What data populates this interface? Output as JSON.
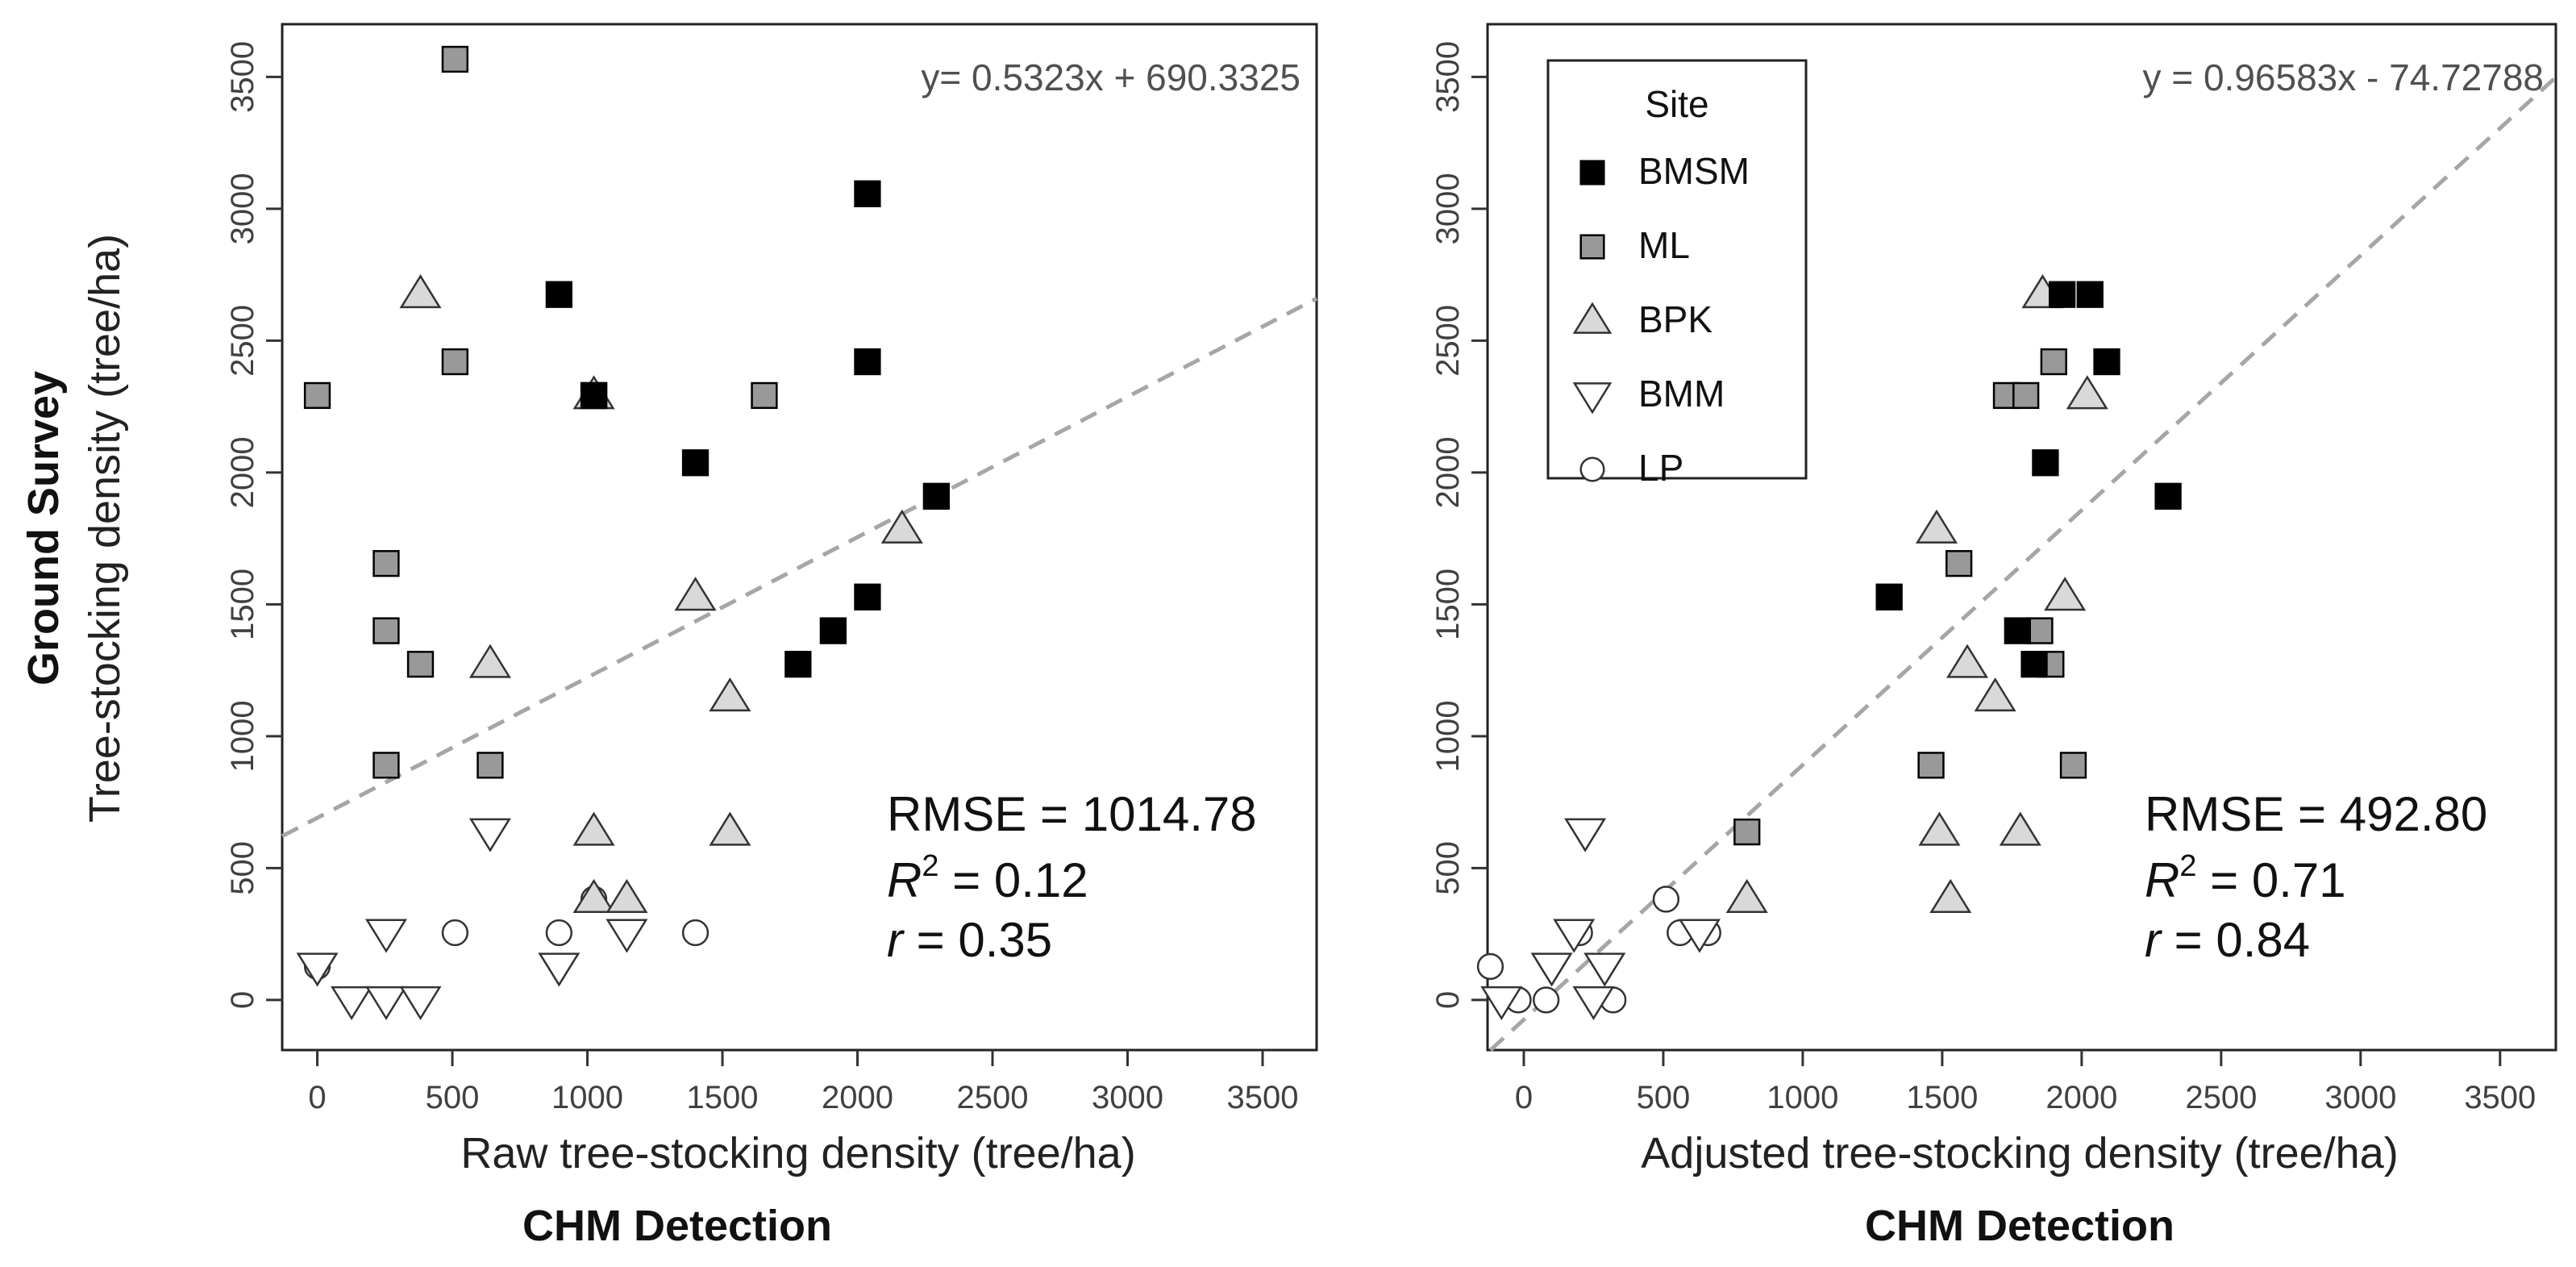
{
  "shared": {
    "ylabel_bold": "Ground Survey",
    "ylabel": "Tree-stocking density (tree/ha)",
    "xlabel_bold": "CHM Detection",
    "ticks": [
      "0",
      "500",
      "1000",
      "1500",
      "2000",
      "2500",
      "3000",
      "3500"
    ]
  },
  "legend": {
    "title": "Site",
    "items": [
      {
        "label": "BMSM",
        "shape": "square",
        "fill": "#000000"
      },
      {
        "label": "ML",
        "shape": "square",
        "fill": "#999999"
      },
      {
        "label": "BPK",
        "shape": "triangle-up",
        "fill": "#d9d9d9"
      },
      {
        "label": "BMM",
        "shape": "triangle-down",
        "fill": "#ffffff"
      },
      {
        "label": "LP",
        "shape": "circle",
        "fill": "#ffffff"
      }
    ]
  },
  "chart_data": [
    {
      "type": "scatter",
      "title": "",
      "xlabel": "Raw tree-stocking density (tree/ha)",
      "xlim": [
        -130,
        3700
      ],
      "ylim": [
        -190,
        3700
      ],
      "equation": "y= 0.5323x + 690.3325",
      "fit": {
        "slope": 0.5323,
        "intercept": 690.3325
      },
      "stats": {
        "rmse_label": "RMSE",
        "rmse": "1014.78",
        "r2_label": "R",
        "r2": "0.12",
        "r_label": "r",
        "r": "0.35"
      },
      "series": [
        {
          "name": "BMSM",
          "points": [
            [
              1024,
              2292
            ],
            [
              1024,
              2292
            ],
            [
              895,
              2675
            ],
            [
              2037,
              3057
            ],
            [
              2037,
              2420
            ],
            [
              1400,
              2037
            ],
            [
              2037,
              1528
            ],
            [
              1910,
              1400
            ],
            [
              1780,
              1273
            ],
            [
              2292,
              1910
            ]
          ]
        },
        {
          "name": "ML",
          "points": [
            [
              510,
              3567
            ],
            [
              0,
              2292
            ],
            [
              510,
              2420
            ],
            [
              1655,
              2292
            ],
            [
              255,
              1655
            ],
            [
              255,
              1400
            ],
            [
              382,
              1273
            ],
            [
              255,
              890
            ],
            [
              640,
              890
            ]
          ]
        },
        {
          "name": "BPK",
          "points": [
            [
              382,
              2675
            ],
            [
              1024,
              2292
            ],
            [
              2165,
              1783
            ],
            [
              1400,
              1528
            ],
            [
              640,
              1273
            ],
            [
              1528,
              1146
            ],
            [
              1024,
              637
            ],
            [
              1528,
              637
            ],
            [
              1024,
              382
            ],
            [
              1146,
              382
            ]
          ]
        },
        {
          "name": "BMM",
          "points": [
            [
              0,
              127
            ],
            [
              127,
              0
            ],
            [
              255,
              0
            ],
            [
              382,
              0
            ],
            [
              255,
              255
            ],
            [
              640,
              637
            ],
            [
              1146,
              255
            ],
            [
              895,
              127
            ]
          ]
        },
        {
          "name": "LP",
          "points": [
            [
              0,
              127
            ],
            [
              510,
              255
            ],
            [
              895,
              255
            ],
            [
              1400,
              255
            ],
            [
              1024,
              382
            ]
          ]
        }
      ]
    },
    {
      "type": "scatter",
      "title": "",
      "xlabel": "Adjusted tree-stocking density (tree/ha)",
      "xlim": [
        -130,
        3700
      ],
      "ylim": [
        -190,
        3700
      ],
      "equation": "y = 0.96583x - 74.72788",
      "fit": {
        "slope": 0.96583,
        "intercept": -74.72788
      },
      "stats": {
        "rmse_label": "RMSE",
        "rmse": "492.80",
        "r2_label": "R",
        "r2": "0.71",
        "r_label": "r",
        "r": "0.84"
      },
      "series": [
        {
          "name": "BMSM",
          "points": [
            [
              1930,
              2675
            ],
            [
              2030,
              2675
            ],
            [
              2090,
              2420
            ],
            [
              1870,
              2037
            ],
            [
              2310,
              1910
            ],
            [
              1310,
              1528
            ],
            [
              1770,
              1400
            ],
            [
              1830,
              1273
            ]
          ]
        },
        {
          "name": "ML",
          "points": [
            [
              1900,
              2420
            ],
            [
              1730,
              2292
            ],
            [
              1800,
              2292
            ],
            [
              1560,
              1655
            ],
            [
              1850,
              1400
            ],
            [
              1890,
              1273
            ],
            [
              1460,
              890
            ],
            [
              1970,
              890
            ],
            [
              800,
              637
            ]
          ]
        },
        {
          "name": "BPK",
          "points": [
            [
              1860,
              2675
            ],
            [
              2020,
              2292
            ],
            [
              1480,
              1783
            ],
            [
              1940,
              1528
            ],
            [
              1590,
              1273
            ],
            [
              1690,
              1146
            ],
            [
              1490,
              637
            ],
            [
              1780,
              637
            ],
            [
              800,
              382
            ],
            [
              1530,
              382
            ]
          ]
        },
        {
          "name": "BMM",
          "points": [
            [
              220,
              637
            ],
            [
              180,
              255
            ],
            [
              100,
              127
            ],
            [
              290,
              127
            ],
            [
              -80,
              0
            ],
            [
              250,
              0
            ],
            [
              630,
              255
            ]
          ]
        },
        {
          "name": "LP",
          "points": [
            [
              -120,
              127
            ],
            [
              510,
              382
            ],
            [
              560,
              255
            ],
            [
              660,
              255
            ],
            [
              200,
              255
            ],
            [
              -20,
              0
            ],
            [
              80,
              0
            ],
            [
              320,
              0
            ]
          ]
        }
      ]
    }
  ]
}
